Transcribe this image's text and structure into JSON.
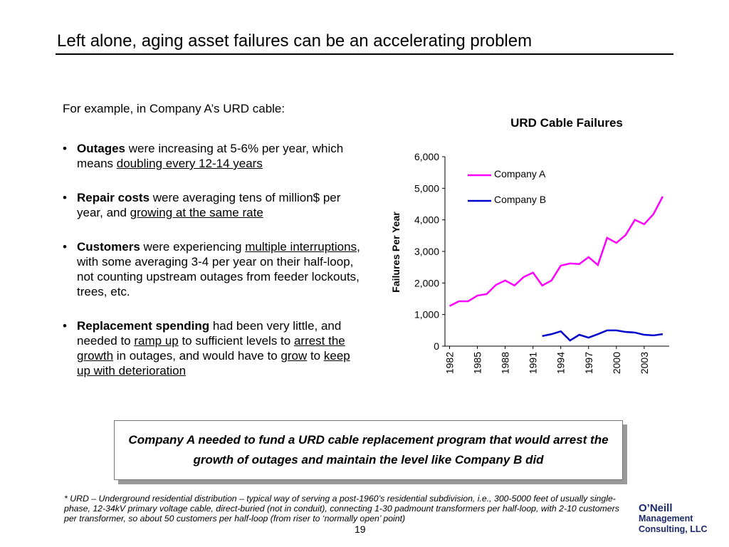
{
  "title": "Left alone, aging asset failures can be an accelerating problem",
  "intro": "For example, in Company A’s URD cable:",
  "bullets": [
    [
      {
        "text": "Outages",
        "style": "bold"
      },
      {
        "text": " were increasing at 5-6% per year, which means "
      },
      {
        "text": "doubling every 12-14 years",
        "style": "underline"
      }
    ],
    [
      {
        "text": "Repair costs",
        "style": "bold"
      },
      {
        "text": " were averaging tens of million$ per year, and "
      },
      {
        "text": "growing at the same rate",
        "style": "underline"
      }
    ],
    [
      {
        "text": "Customers",
        "style": "bold"
      },
      {
        "text": " were experiencing "
      },
      {
        "text": "multiple interruptions",
        "style": "underline"
      },
      {
        "text": ", with some averaging 3-4 per year on their half-loop, not counting upstream outages from feeder lockouts, trees, etc."
      }
    ],
    [
      {
        "text": "Replacement spending",
        "style": "bold"
      },
      {
        "text": " had been very little, and needed to "
      },
      {
        "text": "ramp up",
        "style": "underline"
      },
      {
        "text": " to sufficient levels to "
      },
      {
        "text": "arrest the growth",
        "style": "underline"
      },
      {
        "text": " in outages, and would have to "
      },
      {
        "text": "grow",
        "style": "underline"
      },
      {
        "text": " to "
      },
      {
        "text": "keep up with deterioration",
        "style": "underline"
      }
    ]
  ],
  "callout": "Company A needed to fund a URD cable replacement program that would arrest the growth of outages and maintain the level like Company B did",
  "footnote": "* URD – Underground residential distribution – typical way of serving a post-1960’s residential subdivision, i.e., 300-5000 feet of usually single-phase, 12-34kV primary voltage cable, direct-buried (not in conduit), connecting 1-30 padmount transformers per half-loop, with 2-10 customers per transformer, so about 50 customers per half-loop (from riser to ‘normally open’ point)",
  "page_number": "19",
  "logo": [
    "O’Neill",
    "Management",
    "Consulting, LLC"
  ],
  "chart_data": {
    "type": "line",
    "title": "URD Cable Failures",
    "y_label": "Failures Per Year",
    "x": [
      1982,
      1983,
      1984,
      1985,
      1986,
      1987,
      1988,
      1989,
      1990,
      1991,
      1992,
      1993,
      1994,
      1995,
      1996,
      1997,
      1998,
      1999,
      2000,
      2001,
      2002,
      2003,
      2004,
      2005
    ],
    "series": [
      {
        "name": "Company A",
        "color": "#ff00ff",
        "values": [
          1270,
          1420,
          1420,
          1600,
          1650,
          1940,
          2080,
          1920,
          2190,
          2330,
          1920,
          2080,
          2550,
          2620,
          2600,
          2820,
          2570,
          3430,
          3270,
          3520,
          4000,
          3860,
          4180,
          4740
        ]
      },
      {
        "name": "Company B",
        "color": "#0000cc",
        "values": [
          null,
          null,
          null,
          null,
          null,
          null,
          null,
          null,
          null,
          null,
          320,
          380,
          470,
          180,
          360,
          270,
          380,
          500,
          500,
          450,
          430,
          360,
          340,
          380
        ]
      }
    ],
    "xlim": [
      1981.5,
      2005.7
    ],
    "xticks": [
      1982,
      1985,
      1988,
      1991,
      1994,
      1997,
      2000,
      2003
    ],
    "ylim": [
      0,
      6000
    ],
    "yticks": [
      0,
      {
        "value": 1000,
        "label": "1,000"
      },
      {
        "value": 2000,
        "label": "2,000"
      },
      {
        "value": 3000,
        "label": "3,000"
      },
      {
        "value": 4000,
        "label": "4,000"
      },
      {
        "value": 5000,
        "label": "5,000"
      },
      {
        "value": 6000,
        "label": "6,000"
      }
    ],
    "legend": "top-left",
    "grid": false
  }
}
